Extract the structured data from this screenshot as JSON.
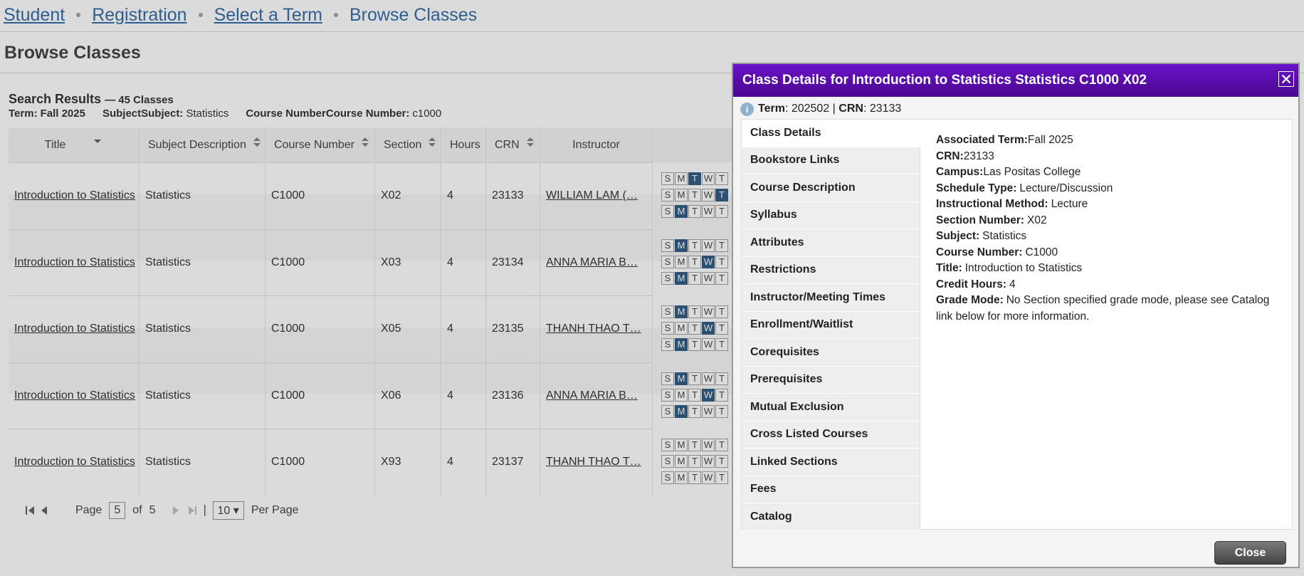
{
  "breadcrumbs": [
    "Student",
    "Registration",
    "Select a Term",
    "Browse Classes"
  ],
  "heading": "Browse Classes",
  "search": {
    "title": "Search Results",
    "count": "— 45 Classes",
    "term_label": "Term:",
    "term": "Fall 2025",
    "subject_label": "SubjectSubject:",
    "subject": "Statistics",
    "course_label": "Course NumberCourse Number:",
    "course": "c1000"
  },
  "table": {
    "columns": [
      "Title",
      "Subject Description",
      "Course Number",
      "Section",
      "Hours",
      "CRN",
      "Instructor"
    ],
    "days": [
      "S",
      "M",
      "T",
      "W",
      "T"
    ],
    "rows": [
      {
        "cells": [
          "Introduction to Statistics",
          "Statistics",
          "C1000",
          "X02",
          "4",
          "23133",
          "WILLIAM LAM (…"
        ],
        "highlight": [
          [
            2
          ],
          [
            4
          ],
          [
            1
          ]
        ]
      },
      {
        "cells": [
          "Introduction to Statistics",
          "Statistics",
          "C1000",
          "X03",
          "4",
          "23134",
          "ANNA MARIA B…"
        ],
        "highlight": [
          [
            1
          ],
          [
            3
          ],
          [
            1
          ]
        ]
      },
      {
        "cells": [
          "Introduction to Statistics",
          "Statistics",
          "C1000",
          "X05",
          "4",
          "23135",
          "THANH THAO T…"
        ],
        "highlight": [
          [
            1
          ],
          [
            3
          ],
          [
            1
          ]
        ]
      },
      {
        "cells": [
          "Introduction to Statistics",
          "Statistics",
          "C1000",
          "X06",
          "4",
          "23136",
          "ANNA MARIA B…"
        ],
        "highlight": [
          [
            1
          ],
          [
            3
          ],
          [
            1
          ]
        ]
      },
      {
        "cells": [
          "Introduction to Statistics",
          "Statistics",
          "C1000",
          "X93",
          "4",
          "23137",
          "THANH THAO T…"
        ],
        "highlight": [
          [],
          [],
          []
        ]
      }
    ]
  },
  "pager": {
    "page_label": "Page",
    "page": "5",
    "of": "of",
    "total": "5",
    "per_page_value": "10",
    "per_page": "Per Page"
  },
  "dialog": {
    "title": "Class Details for Introduction to Statistics Statistics C1000 X02",
    "info": {
      "term_label": "Term",
      "term": ": 202502 | ",
      "crn_label": "CRN",
      "crn": ": 23133"
    },
    "tabs": [
      "Class Details",
      "Bookstore Links",
      "Course Description",
      "Syllabus",
      "Attributes",
      "Restrictions",
      "Instructor/Meeting Times",
      "Enrollment/Waitlist",
      "Corequisites",
      "Prerequisites",
      "Mutual Exclusion",
      "Cross Listed Courses",
      "Linked Sections",
      "Fees",
      "Catalog"
    ],
    "details": [
      {
        "label": "Associated Term:",
        "value": "Fall 2025"
      },
      {
        "label": "CRN:",
        "value": "23133"
      },
      {
        "label": "Campus:",
        "value": "Las Positas College"
      },
      {
        "label": "Schedule Type:",
        "value": "Lecture/Discussion"
      },
      {
        "label": "Instructional Method:",
        "value": "Lecture"
      },
      {
        "label": "Section Number:",
        "value": "X02"
      },
      {
        "label": "Subject:",
        "value": "Statistics"
      },
      {
        "label": "Course Number:",
        "value": "C1000"
      },
      {
        "label": "Title:",
        "value": "Introduction to Statistics"
      },
      {
        "label": "Credit Hours:",
        "value": "4"
      },
      {
        "label": "Grade Mode:",
        "value": "No Section specified grade mode, please see Catalog link below for more information."
      }
    ],
    "close": "Close"
  }
}
